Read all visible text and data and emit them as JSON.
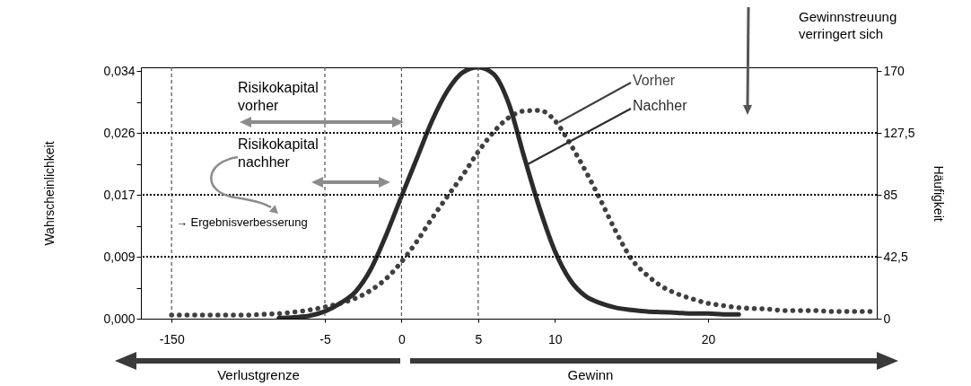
{
  "chart_data": {
    "type": "line",
    "categories": [
      null,
      null,
      "-150",
      null,
      null,
      null,
      null,
      null,
      null,
      null,
      null,
      null,
      "-5",
      null,
      null,
      null,
      null,
      "0",
      null,
      null,
      null,
      null,
      "5",
      null,
      null,
      null,
      null,
      "10",
      null,
      null,
      null,
      null,
      null,
      null,
      null,
      null,
      null,
      "20",
      null,
      null,
      null,
      null,
      null,
      null,
      null,
      null,
      null,
      null,
      null
    ],
    "ylim": [
      0,
      0.0345
    ],
    "yticks": [
      {
        "value": 0,
        "label": "0,000"
      },
      {
        "value": 0.00425,
        "label": null
      },
      {
        "value": 0.0085,
        "label": "0,009"
      },
      {
        "value": 0.01275,
        "label": null
      },
      {
        "value": 0.017,
        "label": "0,017"
      },
      {
        "value": 0.02125,
        "label": null
      },
      {
        "value": 0.0255,
        "label": "0,026"
      },
      {
        "value": 0.02975,
        "label": null
      },
      {
        "value": 0.034,
        "label": "0,034"
      }
    ],
    "y2lim": [
      0,
      172.5
    ],
    "y2ticks": [
      0,
      {
        "value": 42.5,
        "label": "42,5"
      },
      85,
      {
        "value": 127.5,
        "label": "127,5"
      },
      170
    ],
    "ylabel": "Wahrscheinlichkeit",
    "y2label": "Häufigkeit",
    "grid": false,
    "legend": false,
    "series": [
      {
        "name": "Vorher",
        "color": "#404040",
        "line_style": "dotted",
        "values": [
          null,
          null,
          0.0005,
          0.0005,
          0.0005,
          0.0005,
          0.0005,
          0.0005,
          0.0006,
          0.0007,
          0.0009,
          0.0012,
          0.0016,
          0.0021,
          0.0028,
          0.0039,
          0.0055,
          0.0078,
          0.0106,
          0.0138,
          0.0168,
          0.0197,
          0.0229,
          0.0256,
          0.0276,
          0.0285,
          0.0286,
          0.0272,
          0.024,
          0.0203,
          0.0162,
          0.0119,
          0.0082,
          0.006,
          0.0044,
          0.0034,
          0.0027,
          0.0021,
          0.0018,
          0.0015,
          0.0014,
          0.0013,
          0.0011,
          0.0011,
          0.0011,
          0.001,
          0.001,
          0.001,
          0.001
        ]
      },
      {
        "name": "Nachher",
        "color": "#2b2b2b",
        "line_style": "solid",
        "values": [
          null,
          null,
          null,
          null,
          null,
          null,
          null,
          null,
          null,
          0.0001,
          0.0002,
          0.0004,
          0.001,
          0.0021,
          0.0037,
          0.0068,
          0.0115,
          0.0168,
          0.022,
          0.0272,
          0.0313,
          0.0338,
          0.0345,
          0.0336,
          0.0295,
          0.0222,
          0.0152,
          0.0093,
          0.0053,
          0.0031,
          0.0021,
          0.0015,
          0.0012,
          0.001,
          0.0009,
          0.0008,
          0.0007,
          0.0007,
          0.0006,
          0.0006,
          null,
          null,
          null,
          null,
          null,
          null,
          null,
          null,
          null
        ]
      }
    ],
    "ref_lines": [
      {
        "axis": "x",
        "value": "-150",
        "line_style": "dashed",
        "color": "#555555"
      },
      {
        "axis": "x",
        "value": "-5",
        "line_style": "dashed",
        "color": "#555555"
      },
      {
        "axis": "x",
        "value": "0",
        "line_style": "dashed",
        "color": "#555555"
      },
      {
        "axis": "x",
        "value": "5",
        "line_style": "dashed",
        "color": "#555555"
      },
      {
        "axis": "y",
        "value": 0.0085,
        "line_style": "dotted",
        "color": "#000000"
      },
      {
        "axis": "y",
        "value": 0.017,
        "line_style": "dotted",
        "color": "#000000"
      },
      {
        "axis": "y",
        "value": 0.0255,
        "line_style": "dotted",
        "color": "#000000"
      }
    ],
    "annotations": [
      "Risikokapital\nvorher",
      "Risikokapital\nnachher",
      "→ Ergebnisverbesserung",
      "Gewinnstreuung\nverringert sich",
      "Verlustgrenze",
      "Gewinn"
    ]
  }
}
